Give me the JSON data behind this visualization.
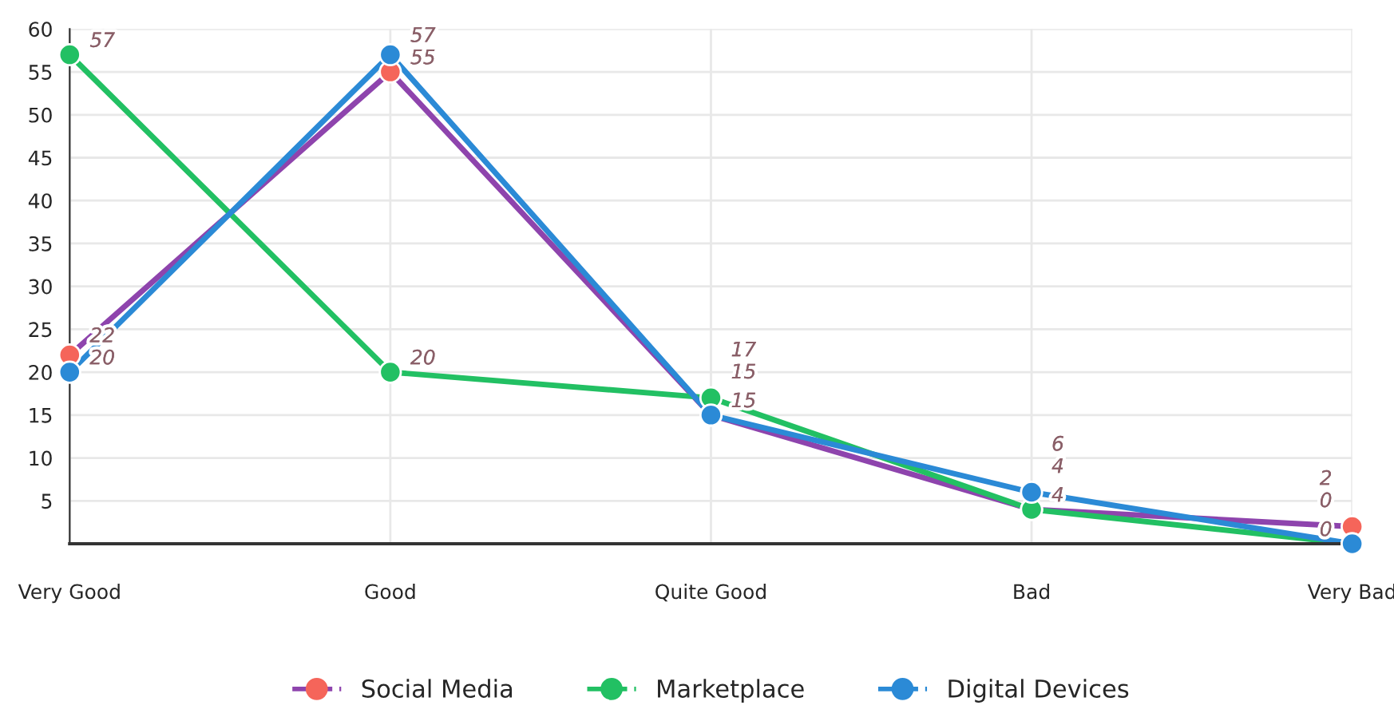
{
  "chart_data": {
    "type": "line",
    "categories": [
      "Very Good",
      "Good",
      "Quite Good",
      "Bad",
      "Very Bad"
    ],
    "series": [
      {
        "name": "Social Media",
        "color": "#8e44ad",
        "colors": [
          "#f5655a",
          "#f5655a",
          "#f5655a",
          "#f5655a",
          "#f5655a"
        ],
        "values": [
          22,
          55,
          15,
          4,
          2
        ]
      },
      {
        "name": "Marketplace",
        "color": "#22c063",
        "values": [
          57,
          20,
          17,
          4,
          0
        ]
      },
      {
        "name": "Digital Devices",
        "color": "#2b8ad6",
        "values": [
          20,
          57,
          15,
          6,
          0
        ]
      }
    ],
    "ylim": [
      0,
      60
    ],
    "yticks": [
      5,
      10,
      15,
      20,
      25,
      30,
      35,
      40,
      45,
      50,
      55,
      60
    ],
    "grid": true,
    "legend": "bottom",
    "marker": "circle",
    "line_style": "solid",
    "data_labels": true
  }
}
